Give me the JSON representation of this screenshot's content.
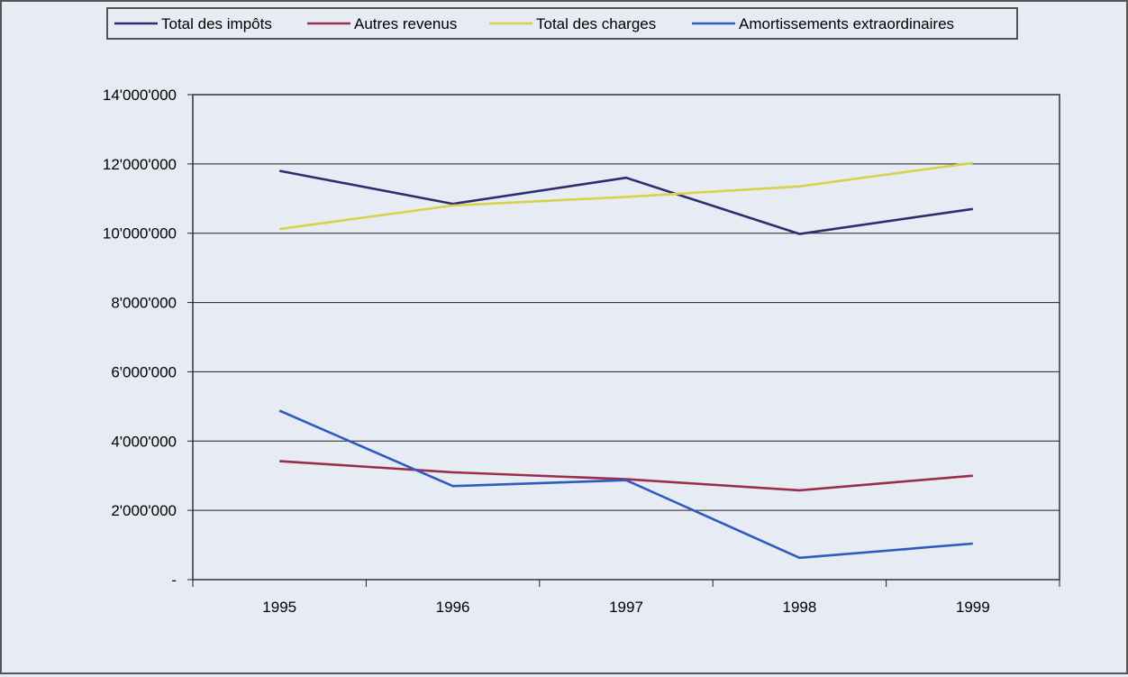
{
  "chart_data": {
    "type": "line",
    "x": [
      "1995",
      "1996",
      "1997",
      "1998",
      "1999"
    ],
    "ylim": [
      0,
      14000000
    ],
    "yticks": [
      0,
      2000000,
      4000000,
      6000000,
      8000000,
      10000000,
      12000000,
      14000000
    ],
    "ytick_labels": [
      "-",
      "2'000'000",
      "4'000'000",
      "6'000'000",
      "8'000'000",
      "10'000'000",
      "12'000'000",
      "14'000'000"
    ],
    "grid": "horizontal",
    "legend_position": "top",
    "series": [
      {
        "name": "Total des impôts",
        "color": "#2b2f6e",
        "values": [
          11800000,
          10850000,
          11600000,
          9980000,
          10700000
        ]
      },
      {
        "name": "Autres revenus",
        "color": "#9b2d4a",
        "values": [
          3420000,
          3100000,
          2900000,
          2580000,
          3000000
        ]
      },
      {
        "name": "Total des charges",
        "color": "#d6d24a",
        "values": [
          10120000,
          10800000,
          11050000,
          11350000,
          12030000
        ]
      },
      {
        "name": "Amortissements extraordinaires",
        "color": "#2f5bc0",
        "values": [
          4880000,
          2700000,
          2870000,
          630000,
          1040000
        ]
      }
    ]
  }
}
